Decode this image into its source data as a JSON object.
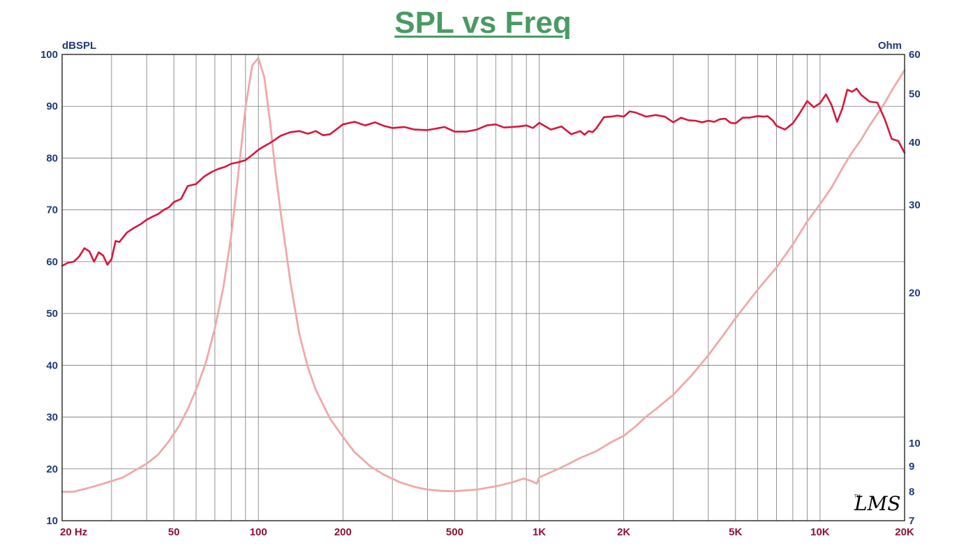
{
  "title": "SPL vs Freq",
  "watermark": "LMS",
  "colors": {
    "title": "#4a9a62",
    "axis_text": "#1f3a78",
    "x_text": "#8e1034",
    "grid": "#777777",
    "spl": "#d8163c",
    "impedance": "#f0a8aa"
  },
  "chart_data": {
    "type": "line",
    "x_scale": "log",
    "xlim": [
      20,
      20000
    ],
    "x_ticks": [
      {
        "value": 20,
        "label": "20  Hz"
      },
      {
        "value": 50,
        "label": "50"
      },
      {
        "value": 100,
        "label": "100"
      },
      {
        "value": 200,
        "label": "200"
      },
      {
        "value": 500,
        "label": "500"
      },
      {
        "value": 1000,
        "label": "1K"
      },
      {
        "value": 2000,
        "label": "2K"
      },
      {
        "value": 5000,
        "label": "5K"
      },
      {
        "value": 10000,
        "label": "10K"
      },
      {
        "value": 20000,
        "label": "20K"
      }
    ],
    "y_left": {
      "label": "dBSPL",
      "lim": [
        10,
        100
      ],
      "ticks": [
        {
          "value": 10,
          "label": "10"
        },
        {
          "value": 20,
          "label": "20"
        },
        {
          "value": 30,
          "label": "30"
        },
        {
          "value": 40,
          "label": "40"
        },
        {
          "value": 50,
          "label": "50"
        },
        {
          "value": 60,
          "label": "60"
        },
        {
          "value": 70,
          "label": "70"
        },
        {
          "value": 80,
          "label": "80"
        },
        {
          "value": 90,
          "label": "90"
        },
        {
          "value": 100,
          "label": "100"
        }
      ]
    },
    "y_right": {
      "label": "Ohm",
      "scale": "log",
      "lim": [
        7,
        60
      ],
      "ticks": [
        {
          "value": 7,
          "label": "7"
        },
        {
          "value": 8,
          "label": "8"
        },
        {
          "value": 9,
          "label": "9"
        },
        {
          "value": 10,
          "label": "10"
        },
        {
          "value": 20,
          "label": "20"
        },
        {
          "value": 30,
          "label": "30"
        },
        {
          "value": 40,
          "label": "40"
        },
        {
          "value": 50,
          "label": "50"
        },
        {
          "value": 60,
          "label": "60"
        }
      ]
    },
    "grid": true,
    "series": [
      {
        "axis": "left",
        "x": [
          20,
          21,
          22,
          23,
          24,
          25,
          26,
          27,
          28,
          29,
          30,
          31,
          32,
          34,
          36,
          38,
          40,
          42,
          44,
          46,
          48,
          50,
          53,
          56,
          60,
          64,
          68,
          72,
          76,
          80,
          85,
          90,
          95,
          100,
          105,
          110,
          120,
          130,
          140,
          150,
          160,
          170,
          180,
          200,
          220,
          240,
          260,
          280,
          300,
          330,
          360,
          400,
          430,
          460,
          500,
          550,
          600,
          650,
          700,
          750,
          800,
          850,
          900,
          950,
          1000,
          1100,
          1200,
          1300,
          1400,
          1450,
          1500,
          1550,
          1600,
          1700,
          1800,
          1900,
          2000,
          2100,
          2200,
          2400,
          2600,
          2800,
          3000,
          3200,
          3400,
          3600,
          3800,
          4000,
          4200,
          4400,
          4600,
          4800,
          5000,
          5300,
          5600,
          6000,
          6300,
          6500,
          6800,
          7000,
          7500,
          8000,
          8500,
          9000,
          9500,
          10000,
          10500,
          11000,
          11500,
          12000,
          12500,
          13000,
          13500,
          14000,
          15000,
          16000,
          17000,
          18000,
          19000,
          20000
        ],
        "y": [
          59.2,
          59.8,
          60.0,
          61.0,
          62.6,
          62.0,
          60.0,
          61.8,
          61.2,
          59.4,
          60.5,
          64.0,
          63.8,
          65.6,
          66.5,
          67.2,
          68.1,
          68.7,
          69.2,
          70.0,
          70.5,
          71.5,
          72.1,
          74.6,
          75.0,
          76.4,
          77.3,
          77.9,
          78.3,
          78.9,
          79.2,
          79.6,
          80.6,
          81.6,
          82.3,
          82.9,
          84.3,
          85.0,
          85.2,
          84.7,
          85.2,
          84.4,
          84.6,
          86.5,
          87.0,
          86.3,
          86.9,
          86.2,
          85.8,
          86.0,
          85.5,
          85.4,
          85.7,
          86.0,
          85.1,
          85.1,
          85.5,
          86.3,
          86.5,
          85.9,
          86.0,
          86.1,
          86.3,
          85.8,
          86.8,
          85.5,
          86.1,
          84.6,
          85.2,
          84.5,
          85.2,
          85.0,
          85.8,
          87.9,
          88.0,
          88.2,
          88.0,
          89.0,
          88.8,
          88.0,
          88.3,
          88.0,
          86.9,
          87.8,
          87.3,
          87.2,
          86.9,
          87.2,
          87.0,
          87.5,
          87.6,
          86.8,
          86.7,
          87.8,
          87.8,
          88.1,
          88.0,
          88.1,
          87.2,
          86.2,
          85.5,
          86.7,
          88.8,
          91.0,
          89.8,
          90.6,
          92.3,
          90.2,
          87.0,
          89.5,
          93.2,
          92.8,
          93.4,
          92.2,
          90.9,
          90.7,
          87.5,
          83.7,
          83.3,
          81.0
        ]
      },
      {
        "axis": "right",
        "x": [
          20,
          22,
          24,
          26,
          28,
          30,
          33,
          36,
          40,
          44,
          48,
          52,
          56,
          60,
          65,
          70,
          75,
          80,
          85,
          90,
          95,
          100,
          105,
          110,
          115,
          120,
          130,
          140,
          150,
          160,
          180,
          200,
          220,
          250,
          280,
          320,
          360,
          400,
          450,
          500,
          600,
          700,
          800,
          880,
          940,
          980,
          1000,
          1100,
          1200,
          1300,
          1400,
          1500,
          1600,
          1700,
          1800,
          2000,
          2200,
          2400,
          2600,
          3000,
          3500,
          4000,
          4500,
          5000,
          6000,
          7000,
          8000,
          9000,
          10000,
          11000,
          12000,
          13000,
          14000,
          15000,
          16000,
          17000,
          18000,
          19000,
          20000
        ],
        "y": [
          8.0,
          8.0,
          8.1,
          8.2,
          8.3,
          8.4,
          8.55,
          8.8,
          9.1,
          9.5,
          10.1,
          10.8,
          11.7,
          12.8,
          14.5,
          17.0,
          20.5,
          26.0,
          35.0,
          47.0,
          57.0,
          59.0,
          54.0,
          44.0,
          35.0,
          29.0,
          21.0,
          16.5,
          14.2,
          12.8,
          11.2,
          10.3,
          9.6,
          9.0,
          8.65,
          8.35,
          8.18,
          8.08,
          8.03,
          8.02,
          8.08,
          8.2,
          8.35,
          8.5,
          8.4,
          8.3,
          8.55,
          8.75,
          8.95,
          9.15,
          9.35,
          9.5,
          9.65,
          9.85,
          10.05,
          10.35,
          10.8,
          11.3,
          11.7,
          12.5,
          13.7,
          15.0,
          16.4,
          17.8,
          20.3,
          22.5,
          25.0,
          27.8,
          30.1,
          32.5,
          35.5,
          38.2,
          40.5,
          43.2,
          45.6,
          48.0,
          50.8,
          53.3,
          55.8
        ]
      }
    ]
  }
}
